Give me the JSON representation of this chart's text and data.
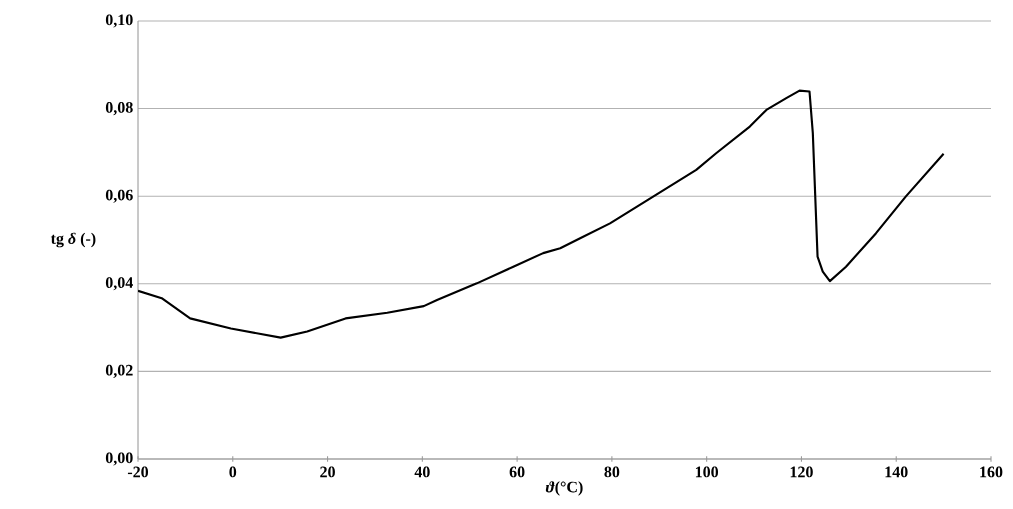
{
  "chart_data": {
    "type": "line",
    "xlabel": "*ϑ*(°C)",
    "ylabel": "tg *δ* (-)",
    "x": [
      -20,
      -15,
      -9,
      -0.4,
      10.1,
      15.7,
      23.8,
      32.6,
      40.3,
      43.1,
      51.5,
      59.2,
      65.5,
      69.1,
      73.3,
      79.6,
      88.7,
      97.8,
      102,
      109.1,
      112.6,
      116.8,
      119.6,
      121.7,
      122.4,
      123.4,
      124.5,
      126.0,
      129.4,
      135.7,
      142,
      150
    ],
    "values": [
      0.0384,
      0.0367,
      0.0321,
      0.0298,
      0.0277,
      0.0291,
      0.0321,
      0.0334,
      0.0349,
      0.0363,
      0.0401,
      0.0439,
      0.047,
      0.0481,
      0.0504,
      0.0538,
      0.0599,
      0.066,
      0.0698,
      0.0759,
      0.0797,
      0.0824,
      0.0841,
      0.0839,
      0.0744,
      0.0462,
      0.0428,
      0.0406,
      0.0439,
      0.0515,
      0.0599,
      0.0697
    ],
    "color": "#000000",
    "line_style": "solid",
    "marker": "none",
    "grid": "y",
    "xlim": [
      -20,
      160
    ],
    "xticks": [
      -20,
      0,
      20,
      40,
      60,
      80,
      100,
      120,
      140,
      160
    ],
    "ylim": [
      0,
      0.1
    ],
    "yticks": [
      {
        "value": 0,
        "label": "0,00"
      },
      {
        "value": 0.02,
        "label": "0,02"
      },
      {
        "value": 0.04,
        "label": "0,04"
      },
      {
        "value": 0.06,
        "label": "0,06"
      },
      {
        "value": 0.08,
        "label": "0,08"
      },
      {
        "value": 0.1,
        "label": "0,10"
      }
    ]
  }
}
